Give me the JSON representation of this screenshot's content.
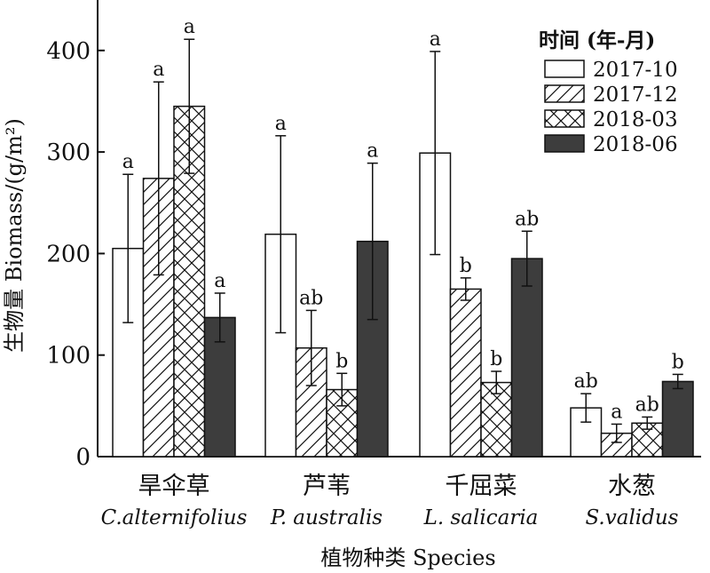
{
  "chart_data": {
    "type": "bar",
    "ylabel": "生物量 Biomass/(g/m²)",
    "xlabel": "植物种类 Species",
    "ylim": [
      0,
      450
    ],
    "yticks": [
      0,
      100,
      200,
      300,
      400
    ],
    "categories": [
      {
        "cn": "旱伞草",
        "latin": "C.alternifolius"
      },
      {
        "cn": "芦苇",
        "latin": "P. australis"
      },
      {
        "cn": "千屈菜",
        "latin": "L. salicaria"
      },
      {
        "cn": "水葱",
        "latin": "S.validus"
      }
    ],
    "legend": {
      "title": "时间 (年-月)",
      "position": "top-right"
    },
    "series": [
      {
        "name": "2017-10",
        "pattern": "open",
        "color": "#ffffff",
        "values": [
          205,
          219,
          299,
          48
        ],
        "err": [
          73,
          97,
          100,
          14
        ],
        "sig": [
          "a",
          "a",
          "a",
          "ab"
        ]
      },
      {
        "name": "2017-12",
        "pattern": "hatch",
        "color": "#ffffff",
        "values": [
          274,
          107,
          165,
          23
        ],
        "err": [
          95,
          37,
          11,
          9
        ],
        "sig": [
          "a",
          "ab",
          "b",
          "a"
        ]
      },
      {
        "name": "2018-03",
        "pattern": "crosshatch",
        "color": "#ffffff",
        "values": [
          345,
          66,
          73,
          33
        ],
        "err": [
          66,
          16,
          11,
          6
        ],
        "sig": [
          "a",
          "b",
          "b",
          "ab"
        ]
      },
      {
        "name": "2018-06",
        "pattern": "solid",
        "color": "#3d3d3d",
        "values": [
          137,
          212,
          195,
          74
        ],
        "err": [
          24,
          77,
          27,
          7
        ],
        "sig": [
          "a",
          "a",
          "ab",
          "b"
        ]
      }
    ]
  }
}
